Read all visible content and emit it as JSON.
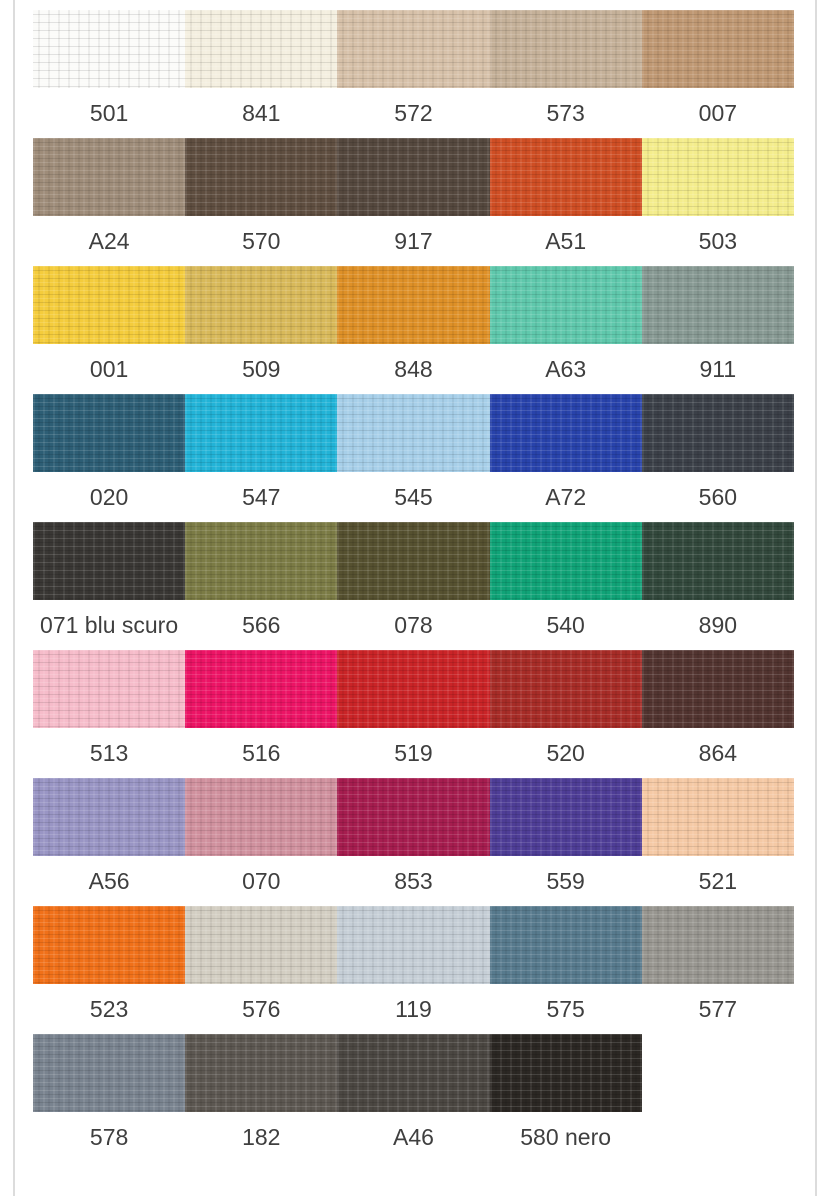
{
  "page": {
    "background": "#ffffff",
    "column_border_color": "#dcdcdc",
    "label_color": "#3f3f3f"
  },
  "swatch_grid": {
    "rows": [
      {
        "cells": [
          {
            "code": "501",
            "color": "#fbfbf9"
          },
          {
            "code": "841",
            "color": "#f4efe0"
          },
          {
            "code": "572",
            "color": "#d7c1a9"
          },
          {
            "code": "573",
            "color": "#c5b199"
          },
          {
            "code": "007",
            "color": "#bf9873"
          }
        ]
      },
      {
        "cells": [
          {
            "code": "A24",
            "color": "#9e8c79"
          },
          {
            "code": "570",
            "color": "#5f4e40"
          },
          {
            "code": "917",
            "color": "#55483e"
          },
          {
            "code": "A51",
            "color": "#cf4e24"
          },
          {
            "code": "503",
            "color": "#f4ed8c"
          }
        ]
      },
      {
        "cells": [
          {
            "code": "001",
            "color": "#f4cc3c"
          },
          {
            "code": "509",
            "color": "#d8b95a"
          },
          {
            "code": "848",
            "color": "#de9027"
          },
          {
            "code": "A63",
            "color": "#5fc8ac"
          },
          {
            "code": "911",
            "color": "#879993"
          }
        ]
      },
      {
        "cells": [
          {
            "code": "020",
            "color": "#2d5e75"
          },
          {
            "code": "547",
            "color": "#22b3d7"
          },
          {
            "code": "545",
            "color": "#a7cfe9"
          },
          {
            "code": "A72",
            "color": "#2843ab"
          },
          {
            "code": "560",
            "color": "#3b4048"
          }
        ]
      },
      {
        "cells": [
          {
            "code": "071 blu scuro",
            "color": "#393734"
          },
          {
            "code": "566",
            "color": "#7b7b45"
          },
          {
            "code": "078",
            "color": "#565130"
          },
          {
            "code": "540",
            "color": "#10a377"
          },
          {
            "code": "890",
            "color": "#32483c"
          }
        ]
      },
      {
        "cells": [
          {
            "code": "513",
            "color": "#f6bcca"
          },
          {
            "code": "516",
            "color": "#ec1465"
          },
          {
            "code": "519",
            "color": "#ca2427"
          },
          {
            "code": "520",
            "color": "#a72c27"
          },
          {
            "code": "864",
            "color": "#523430"
          }
        ]
      },
      {
        "cells": [
          {
            "code": "A56",
            "color": "#9995c4"
          },
          {
            "code": "070",
            "color": "#d0919e"
          },
          {
            "code": "853",
            "color": "#a61d4f"
          },
          {
            "code": "559",
            "color": "#4e3d96"
          },
          {
            "code": "521",
            "color": "#f5c9a5"
          }
        ]
      },
      {
        "cells": [
          {
            "code": "523",
            "color": "#f07019"
          },
          {
            "code": "576",
            "color": "#d3cec2"
          },
          {
            "code": "119",
            "color": "#c5ced6"
          },
          {
            "code": "575",
            "color": "#577a8d"
          },
          {
            "code": "577",
            "color": "#989690"
          }
        ]
      },
      {
        "cells": [
          {
            "code": "578",
            "color": "#79838f"
          },
          {
            "code": "182",
            "color": "#5c5751"
          },
          {
            "code": "A46",
            "color": "#4b4742"
          },
          {
            "code": "580 nero",
            "color": "#2b2723"
          }
        ]
      }
    ]
  }
}
